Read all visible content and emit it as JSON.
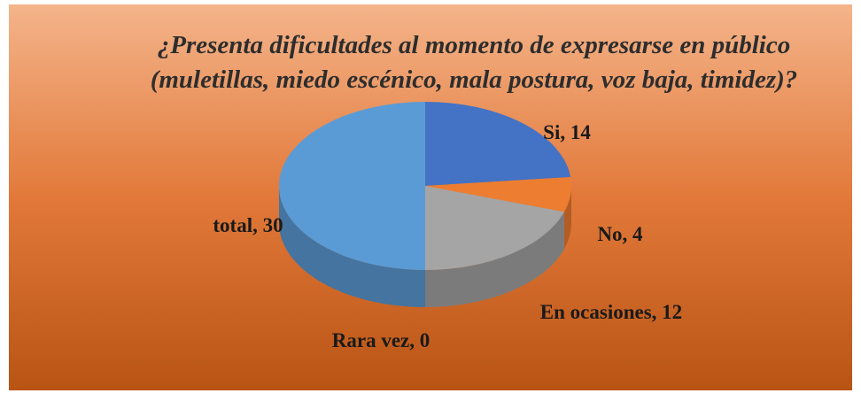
{
  "chart_data": {
    "type": "pie",
    "title": "¿Presenta dificultades al momento de expresarse en público (muletillas, miedo escénico, mala postura, voz baja, timidez)?",
    "categories": [
      "Si",
      "No",
      "En ocasiones",
      "Rara vez",
      "total"
    ],
    "values": [
      14,
      4,
      12,
      0,
      30
    ],
    "value_labels": [
      "Si, 14",
      "No, 4",
      "En ocasiones, 12",
      "Rara vez, 0",
      "total, 30"
    ],
    "colors": [
      "#4472c4",
      "#ed7d31",
      "#a5a5a5",
      "#ffc000",
      "#5b9bd5"
    ]
  }
}
